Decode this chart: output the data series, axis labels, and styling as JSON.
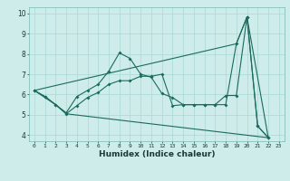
{
  "xlabel": "Humidex (Indice chaleur)",
  "bg_color": "#cdecea",
  "line_color": "#1a6b5e",
  "grid_color": "#aad8d4",
  "xlim": [
    -0.5,
    23.5
  ],
  "ylim": [
    3.7,
    10.3
  ],
  "yticks": [
    4,
    5,
    6,
    7,
    8,
    9,
    10
  ],
  "xticks": [
    0,
    1,
    2,
    3,
    4,
    5,
    6,
    7,
    8,
    9,
    10,
    11,
    12,
    13,
    14,
    15,
    16,
    17,
    18,
    19,
    20,
    21,
    22,
    23
  ],
  "series1_x": [
    0,
    1,
    2,
    3,
    4,
    5,
    6,
    7,
    8,
    9,
    10,
    11,
    12,
    13,
    14,
    15,
    16,
    17,
    18,
    19,
    20,
    21,
    22
  ],
  "series1_y": [
    6.2,
    5.9,
    5.5,
    5.1,
    5.9,
    6.2,
    6.5,
    7.15,
    8.05,
    7.78,
    7.0,
    6.85,
    6.05,
    5.85,
    5.5,
    5.5,
    5.5,
    5.5,
    5.5,
    8.5,
    9.82,
    4.45,
    3.87
  ],
  "series2_x": [
    0,
    1,
    2,
    3,
    4,
    5,
    6,
    7,
    8,
    9,
    10,
    11,
    12,
    13,
    14,
    15,
    16,
    17,
    18,
    19,
    20,
    21,
    22
  ],
  "series2_y": [
    6.2,
    5.9,
    5.5,
    5.05,
    5.45,
    5.85,
    6.1,
    6.5,
    6.68,
    6.68,
    6.9,
    6.9,
    7.0,
    5.45,
    5.5,
    5.5,
    5.5,
    5.5,
    5.95,
    5.95,
    9.82,
    4.45,
    3.87
  ],
  "series3_x": [
    0,
    2,
    3,
    22
  ],
  "series3_y": [
    6.2,
    5.5,
    5.05,
    3.87
  ],
  "series4_x": [
    0,
    19,
    20,
    22
  ],
  "series4_y": [
    6.2,
    8.5,
    9.82,
    3.87
  ]
}
